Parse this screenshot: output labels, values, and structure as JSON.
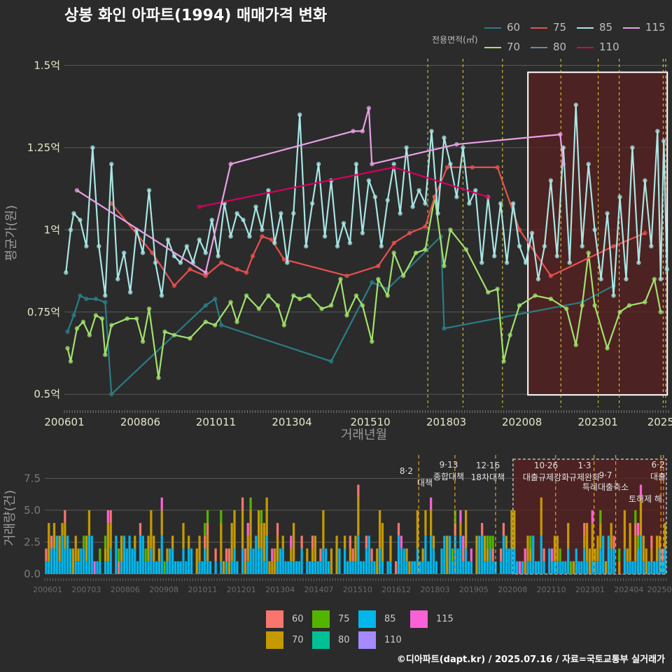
{
  "title": "상봉 화인 아파트(1994) 매매가격 변화",
  "footer": "©디아파트(dapt.kr) / 2025.07.16 / 자료=국토교통부 실거래가",
  "legend_title": "전용면적(㎡)",
  "colors": {
    "60": "#2a7d85",
    "70": "#a2e26d",
    "75": "#e8504f",
    "80": "#5b8eb5",
    "85": "#a8e6e4",
    "110": "#d6005f",
    "115": "#e8a0e6"
  },
  "bar_colors": {
    "60": "#f8766d",
    "70": "#c49a00",
    "75": "#53b400",
    "80": "#00c094",
    "85": "#00b6eb",
    "110": "#a58aff",
    "115": "#fb61d7"
  },
  "chart_data": [
    {
      "type": "line",
      "title": "상봉 화인 아파트(1994) 매매가격 변화",
      "xlabel": "거래년월",
      "ylabel": "평균가(원)",
      "x_tick_labels": [
        "200601",
        "200806",
        "201011",
        "201304",
        "201510",
        "201803",
        "202008",
        "202301",
        "2025"
      ],
      "x_tick_values": [
        2006.0,
        2008.42,
        2010.83,
        2013.25,
        2015.75,
        2018.17,
        2020.58,
        2023.0,
        2025.0
      ],
      "xlim": [
        2006.0,
        2025.25
      ],
      "y_tick_labels": [
        "0.5억",
        "0.75억",
        "1억",
        "1.25억",
        "1.5억"
      ],
      "y_tick_values": [
        0.5,
        0.75,
        1.0,
        1.25,
        1.5
      ],
      "ylim": [
        0.46,
        1.52
      ],
      "series": [
        {
          "name": "60",
          "points": [
            [
              2006.1,
              0.69
            ],
            [
              2006.3,
              0.74
            ],
            [
              2006.5,
              0.8
            ],
            [
              2006.7,
              0.79
            ],
            [
              2007.0,
              0.79
            ],
            [
              2007.3,
              0.78
            ],
            [
              2007.5,
              0.5
            ],
            [
              2010.5,
              0.77
            ],
            [
              2010.8,
              0.79
            ],
            [
              2011.0,
              0.71
            ],
            [
              2014.5,
              0.6
            ],
            [
              2015.8,
              0.84
            ],
            [
              2016.3,
              0.82
            ],
            [
              2018.0,
              0.98
            ],
            [
              2018.1,
              0.7
            ],
            [
              2022.5,
              0.78
            ],
            [
              2023.5,
              0.83
            ]
          ]
        },
        {
          "name": "70",
          "points": [
            [
              2006.1,
              0.64
            ],
            [
              2006.2,
              0.6
            ],
            [
              2006.4,
              0.7
            ],
            [
              2006.6,
              0.72
            ],
            [
              2006.8,
              0.68
            ],
            [
              2007.0,
              0.74
            ],
            [
              2007.2,
              0.73
            ],
            [
              2007.3,
              0.62
            ],
            [
              2007.5,
              0.71
            ],
            [
              2008.0,
              0.73
            ],
            [
              2008.3,
              0.73
            ],
            [
              2008.5,
              0.66
            ],
            [
              2008.7,
              0.76
            ],
            [
              2009.0,
              0.55
            ],
            [
              2009.2,
              0.69
            ],
            [
              2009.5,
              0.68
            ],
            [
              2010.0,
              0.67
            ],
            [
              2010.5,
              0.72
            ],
            [
              2010.8,
              0.71
            ],
            [
              2011.3,
              0.78
            ],
            [
              2011.5,
              0.72
            ],
            [
              2011.8,
              0.8
            ],
            [
              2012.2,
              0.76
            ],
            [
              2012.5,
              0.8
            ],
            [
              2012.8,
              0.77
            ],
            [
              2013.0,
              0.71
            ],
            [
              2013.3,
              0.8
            ],
            [
              2013.5,
              0.79
            ],
            [
              2013.8,
              0.8
            ],
            [
              2014.2,
              0.76
            ],
            [
              2014.5,
              0.77
            ],
            [
              2014.8,
              0.85
            ],
            [
              2015.0,
              0.74
            ],
            [
              2015.3,
              0.8
            ],
            [
              2015.5,
              0.77
            ],
            [
              2015.8,
              0.66
            ],
            [
              2016.0,
              0.85
            ],
            [
              2016.3,
              0.8
            ],
            [
              2016.5,
              0.93
            ],
            [
              2016.8,
              0.86
            ],
            [
              2017.2,
              0.93
            ],
            [
              2017.5,
              0.94
            ],
            [
              2017.8,
              1.1
            ],
            [
              2018.1,
              0.89
            ],
            [
              2018.3,
              1.0
            ],
            [
              2018.8,
              0.94
            ],
            [
              2019.5,
              0.81
            ],
            [
              2019.8,
              0.82
            ],
            [
              2020.0,
              0.6
            ],
            [
              2020.2,
              0.68
            ],
            [
              2020.5,
              0.77
            ],
            [
              2021.0,
              0.8
            ],
            [
              2021.5,
              0.79
            ],
            [
              2022.0,
              0.76
            ],
            [
              2022.3,
              0.65
            ],
            [
              2022.5,
              0.77
            ],
            [
              2022.7,
              0.93
            ],
            [
              2022.9,
              0.77
            ],
            [
              2023.3,
              0.64
            ],
            [
              2023.7,
              0.75
            ],
            [
              2024.0,
              0.77
            ],
            [
              2024.5,
              0.78
            ],
            [
              2024.8,
              0.85
            ],
            [
              2025.0,
              0.75
            ]
          ]
        },
        {
          "name": "75",
          "points": [
            [
              2007.5,
              1.08
            ],
            [
              2008.8,
              0.93
            ],
            [
              2009.5,
              0.83
            ],
            [
              2010.0,
              0.88
            ],
            [
              2010.5,
              0.86
            ],
            [
              2011.0,
              0.9
            ],
            [
              2011.5,
              0.88
            ],
            [
              2011.8,
              0.87
            ],
            [
              2012.0,
              0.92
            ],
            [
              2012.3,
              0.98
            ],
            [
              2012.6,
              0.97
            ],
            [
              2013.0,
              0.91
            ],
            [
              2015.0,
              0.86
            ],
            [
              2016.0,
              0.89
            ],
            [
              2016.5,
              0.96
            ],
            [
              2017.0,
              0.99
            ],
            [
              2017.5,
              1.01
            ],
            [
              2017.8,
              1.1
            ],
            [
              2018.2,
              1.19
            ],
            [
              2019.0,
              1.19
            ],
            [
              2019.8,
              1.19
            ],
            [
              2020.5,
              1.0
            ],
            [
              2021.5,
              0.86
            ],
            [
              2023.5,
              0.95
            ],
            [
              2024.5,
              0.99
            ]
          ]
        },
        {
          "name": "80",
          "points": [
            [
              2020.8,
              0.97
            ]
          ]
        },
        {
          "name": "85",
          "points": [
            [
              2006.05,
              0.87
            ],
            [
              2006.2,
              1.0
            ],
            [
              2006.3,
              1.05
            ],
            [
              2006.5,
              1.03
            ],
            [
              2006.7,
              0.95
            ],
            [
              2006.9,
              1.25
            ],
            [
              2007.1,
              0.95
            ],
            [
              2007.3,
              0.8
            ],
            [
              2007.5,
              1.2
            ],
            [
              2007.7,
              0.85
            ],
            [
              2007.9,
              0.93
            ],
            [
              2008.1,
              0.81
            ],
            [
              2008.3,
              1.0
            ],
            [
              2008.5,
              0.93
            ],
            [
              2008.7,
              1.12
            ],
            [
              2008.9,
              0.9
            ],
            [
              2009.1,
              0.8
            ],
            [
              2009.3,
              0.97
            ],
            [
              2009.5,
              0.92
            ],
            [
              2009.7,
              0.9
            ],
            [
              2009.9,
              0.95
            ],
            [
              2010.1,
              0.9
            ],
            [
              2010.3,
              0.97
            ],
            [
              2010.5,
              0.93
            ],
            [
              2010.7,
              1.03
            ],
            [
              2010.9,
              0.92
            ],
            [
              2011.1,
              1.08
            ],
            [
              2011.3,
              0.98
            ],
            [
              2011.5,
              1.05
            ],
            [
              2011.7,
              1.03
            ],
            [
              2011.9,
              0.98
            ],
            [
              2012.1,
              1.07
            ],
            [
              2012.3,
              1.0
            ],
            [
              2012.5,
              1.12
            ],
            [
              2012.7,
              0.96
            ],
            [
              2012.9,
              1.05
            ],
            [
              2013.1,
              0.9
            ],
            [
              2013.3,
              1.05
            ],
            [
              2013.5,
              1.35
            ],
            [
              2013.7,
              0.95
            ],
            [
              2013.9,
              1.08
            ],
            [
              2014.1,
              1.2
            ],
            [
              2014.3,
              0.98
            ],
            [
              2014.5,
              1.15
            ],
            [
              2014.7,
              0.95
            ],
            [
              2014.9,
              1.02
            ],
            [
              2015.1,
              0.96
            ],
            [
              2015.3,
              1.2
            ],
            [
              2015.5,
              0.99
            ],
            [
              2015.7,
              1.15
            ],
            [
              2015.9,
              1.1
            ],
            [
              2016.1,
              0.95
            ],
            [
              2016.3,
              1.09
            ],
            [
              2016.5,
              1.2
            ],
            [
              2016.7,
              1.05
            ],
            [
              2016.9,
              1.25
            ],
            [
              2017.1,
              1.07
            ],
            [
              2017.3,
              1.12
            ],
            [
              2017.5,
              1.08
            ],
            [
              2017.7,
              1.3
            ],
            [
              2017.9,
              1.05
            ],
            [
              2018.1,
              1.28
            ],
            [
              2018.3,
              1.2
            ],
            [
              2018.5,
              1.1
            ],
            [
              2018.7,
              1.25
            ],
            [
              2018.9,
              1.08
            ],
            [
              2019.1,
              1.12
            ],
            [
              2019.3,
              0.9
            ],
            [
              2019.5,
              1.1
            ],
            [
              2019.7,
              0.92
            ],
            [
              2019.9,
              1.08
            ],
            [
              2020.1,
              0.9
            ],
            [
              2020.3,
              1.08
            ],
            [
              2020.5,
              0.95
            ],
            [
              2020.7,
              0.9
            ],
            [
              2020.9,
              0.99
            ],
            [
              2021.1,
              0.85
            ],
            [
              2021.3,
              0.95
            ],
            [
              2021.5,
              1.15
            ],
            [
              2021.7,
              0.92
            ],
            [
              2021.9,
              1.25
            ],
            [
              2022.1,
              0.9
            ],
            [
              2022.3,
              1.38
            ],
            [
              2022.5,
              0.95
            ],
            [
              2022.7,
              1.2
            ],
            [
              2022.9,
              1.0
            ],
            [
              2023.1,
              0.85
            ],
            [
              2023.3,
              1.05
            ],
            [
              2023.5,
              0.8
            ],
            [
              2023.7,
              1.1
            ],
            [
              2023.9,
              0.85
            ],
            [
              2024.1,
              1.25
            ],
            [
              2024.3,
              0.9
            ],
            [
              2024.5,
              1.15
            ],
            [
              2024.7,
              0.95
            ],
            [
              2024.9,
              1.3
            ],
            [
              2025.0,
              0.85
            ],
            [
              2025.1,
              1.27
            ],
            [
              2025.2,
              0.88
            ]
          ]
        },
        {
          "name": "110",
          "points": [
            [
              2010.3,
              1.07
            ],
            [
              2016.5,
              1.19
            ],
            [
              2019.5,
              1.1
            ]
          ]
        },
        {
          "name": "115",
          "points": [
            [
              2006.4,
              1.12
            ],
            [
              2010.5,
              0.87
            ],
            [
              2011.3,
              1.2
            ],
            [
              2015.2,
              1.3
            ],
            [
              2015.5,
              1.3
            ],
            [
              2015.7,
              1.37
            ],
            [
              2015.8,
              1.2
            ],
            [
              2018.5,
              1.26
            ],
            [
              2021.8,
              1.29
            ],
            [
              2021.9,
              1.2
            ]
          ]
        }
      ]
    },
    {
      "type": "bar",
      "stacked": true,
      "xlabel": "",
      "ylabel": "거래량(건)",
      "x_tick_labels": [
        "200601",
        "200703",
        "200806",
        "200908",
        "201011",
        "201201",
        "201304",
        "201407",
        "201510",
        "201612",
        "201803",
        "201905",
        "202008",
        "202110",
        "202301",
        "202404",
        "20250"
      ],
      "y_tick_labels": [
        "0.0",
        "2.5",
        "5.0",
        "7.5"
      ],
      "y_tick_values": [
        0,
        2.5,
        5.0,
        7.5
      ],
      "ylim": [
        0,
        9
      ],
      "series_names": [
        "60",
        "70",
        "75",
        "80",
        "85",
        "110",
        "115"
      ]
    }
  ],
  "policy_events": [
    {
      "label_date": "8·2",
      "label_text": "대책"
    },
    {
      "label_date": "9·13",
      "label_text": "종합대책"
    },
    {
      "label_date": "12·16",
      "label_text": "18차대책"
    },
    {
      "label_date": "10·26",
      "label_text": "대출규제강화"
    },
    {
      "label_date": "1·3",
      "label_text": "규제완화"
    },
    {
      "label_date": "9·7",
      "label_text": "특례대출축소"
    },
    {
      "label_date": "",
      "label_text": "토허제 해"
    },
    {
      "label_date": "6·2",
      "label_text": "대출"
    }
  ]
}
